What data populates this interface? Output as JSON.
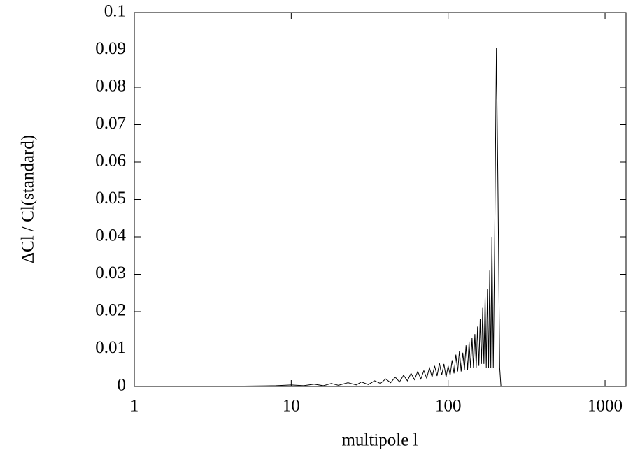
{
  "chart_data": {
    "type": "line",
    "xlabel": "multipole l",
    "ylabel": "ΔCl / Cl(standard)",
    "xscale": "log",
    "xlim": [
      1,
      1360
    ],
    "ylim": [
      0,
      0.1
    ],
    "xticks": [
      1,
      10,
      100,
      1000
    ],
    "yticks": [
      0,
      0.01,
      0.02,
      0.03,
      0.04,
      0.05,
      0.06,
      0.07,
      0.08,
      0.09,
      0.1
    ],
    "color": "#000000",
    "x": [
      1,
      2,
      5,
      8,
      10,
      12,
      14,
      16,
      18,
      20,
      23,
      26,
      28,
      31,
      34,
      37,
      40,
      43,
      46,
      49,
      52,
      55,
      58,
      61,
      64,
      67,
      70,
      73,
      76,
      79,
      82,
      85,
      88,
      91,
      94,
      97,
      100,
      103,
      106,
      109,
      112,
      115,
      118,
      121,
      124,
      127,
      130,
      133,
      136,
      139,
      142,
      145,
      148,
      151,
      154,
      157,
      160,
      163,
      166,
      169,
      172,
      175,
      178,
      181,
      184,
      187,
      190,
      194,
      198,
      203,
      208,
      213,
      217,
      300,
      1000,
      1360
    ],
    "values": [
      0,
      0,
      0.0001,
      0.0002,
      0.0004,
      0.0002,
      0.0006,
      0.0002,
      0.0008,
      0.0003,
      0.001,
      0.0004,
      0.0012,
      0.0005,
      0.0015,
      0.0008,
      0.002,
      0.001,
      0.0025,
      0.0012,
      0.003,
      0.0015,
      0.0035,
      0.0018,
      0.004,
      0.002,
      0.0042,
      0.0022,
      0.005,
      0.0025,
      0.0055,
      0.0028,
      0.0062,
      0.003,
      0.006,
      0.0025,
      0.0055,
      0.003,
      0.007,
      0.0035,
      0.0085,
      0.004,
      0.0095,
      0.004,
      0.009,
      0.0045,
      0.011,
      0.0045,
      0.012,
      0.005,
      0.013,
      0.005,
      0.014,
      0.005,
      0.016,
      0.0055,
      0.018,
      0.006,
      0.021,
      0.006,
      0.024,
      0.005,
      0.026,
      0.005,
      0.031,
      0.005,
      0.04,
      0.005,
      0.04,
      0.0905,
      0.05,
      0.005,
      0,
      0,
      0,
      0
    ]
  }
}
